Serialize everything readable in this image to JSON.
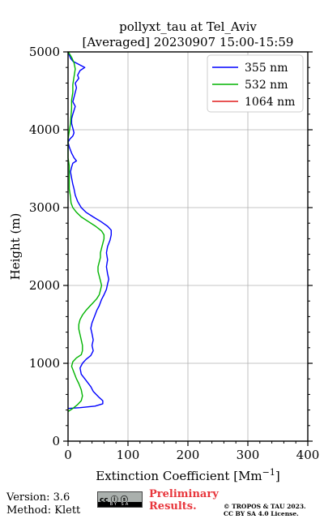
{
  "chart_data": {
    "type": "line",
    "title": "pollyxt_tau at Tel_Aviv",
    "subtitle": "[Averaged] 20230907 15:00-15:59",
    "xlabel": "Extinction Coefficient [Mm",
    "xlabel_sup": "−1",
    "xlabel_close": "]",
    "ylabel": "Height (m)",
    "xlim": [
      0,
      400
    ],
    "ylim": [
      0,
      5000
    ],
    "xticks": [
      "0",
      "100",
      "200",
      "300",
      "400"
    ],
    "yticks": [
      "0",
      "1000",
      "2000",
      "3000",
      "4000",
      "5000"
    ],
    "grid": true,
    "legend_position": "top-right",
    "series": [
      {
        "name": "355 nm",
        "color": "#0000ff",
        "points": [
          [
            0,
            420
          ],
          [
            20,
            430
          ],
          [
            45,
            450
          ],
          [
            58,
            480
          ],
          [
            58,
            520
          ],
          [
            52,
            560
          ],
          [
            42,
            640
          ],
          [
            38,
            700
          ],
          [
            30,
            780
          ],
          [
            22,
            860
          ],
          [
            20,
            940
          ],
          [
            24,
            1000
          ],
          [
            30,
            1050
          ],
          [
            38,
            1100
          ],
          [
            42,
            1160
          ],
          [
            40,
            1230
          ],
          [
            42,
            1300
          ],
          [
            40,
            1380
          ],
          [
            38,
            1450
          ],
          [
            40,
            1520
          ],
          [
            44,
            1600
          ],
          [
            48,
            1680
          ],
          [
            52,
            1740
          ],
          [
            56,
            1820
          ],
          [
            60,
            1880
          ],
          [
            64,
            1950
          ],
          [
            66,
            2020
          ],
          [
            68,
            2080
          ],
          [
            66,
            2150
          ],
          [
            64,
            2240
          ],
          [
            66,
            2330
          ],
          [
            64,
            2420
          ],
          [
            66,
            2500
          ],
          [
            70,
            2580
          ],
          [
            72,
            2650
          ],
          [
            72,
            2710
          ],
          [
            66,
            2760
          ],
          [
            55,
            2820
          ],
          [
            42,
            2880
          ],
          [
            30,
            2940
          ],
          [
            22,
            3000
          ],
          [
            16,
            3080
          ],
          [
            12,
            3160
          ],
          [
            10,
            3240
          ],
          [
            8,
            3300
          ],
          [
            6,
            3380
          ],
          [
            4,
            3460
          ],
          [
            6,
            3520
          ],
          [
            8,
            3570
          ],
          [
            14,
            3600
          ],
          [
            10,
            3640
          ],
          [
            6,
            3700
          ],
          [
            2,
            3780
          ],
          [
            0,
            3840
          ],
          [
            3,
            3880
          ],
          [
            8,
            3920
          ],
          [
            10,
            3960
          ],
          [
            8,
            4020
          ],
          [
            6,
            4080
          ],
          [
            6,
            4140
          ],
          [
            8,
            4200
          ],
          [
            10,
            4250
          ],
          [
            12,
            4300
          ],
          [
            8,
            4360
          ],
          [
            10,
            4420
          ],
          [
            12,
            4480
          ],
          [
            14,
            4540
          ],
          [
            12,
            4600
          ],
          [
            18,
            4660
          ],
          [
            16,
            4700
          ],
          [
            20,
            4760
          ],
          [
            28,
            4800
          ],
          [
            18,
            4840
          ],
          [
            8,
            4880
          ],
          [
            4,
            4920
          ],
          [
            2,
            4960
          ],
          [
            0,
            5000
          ]
        ]
      },
      {
        "name": "532 nm",
        "color": "#00b400",
        "points": [
          [
            0,
            380
          ],
          [
            8,
            420
          ],
          [
            16,
            470
          ],
          [
            22,
            520
          ],
          [
            24,
            580
          ],
          [
            22,
            660
          ],
          [
            18,
            740
          ],
          [
            14,
            800
          ],
          [
            10,
            880
          ],
          [
            6,
            960
          ],
          [
            8,
            1020
          ],
          [
            14,
            1070
          ],
          [
            22,
            1110
          ],
          [
            24,
            1160
          ],
          [
            24,
            1230
          ],
          [
            22,
            1300
          ],
          [
            20,
            1370
          ],
          [
            18,
            1440
          ],
          [
            18,
            1500
          ],
          [
            20,
            1560
          ],
          [
            24,
            1620
          ],
          [
            30,
            1680
          ],
          [
            36,
            1730
          ],
          [
            42,
            1780
          ],
          [
            48,
            1830
          ],
          [
            52,
            1880
          ],
          [
            54,
            1940
          ],
          [
            56,
            2000
          ],
          [
            54,
            2060
          ],
          [
            52,
            2120
          ],
          [
            50,
            2180
          ],
          [
            50,
            2240
          ],
          [
            52,
            2300
          ],
          [
            54,
            2360
          ],
          [
            54,
            2420
          ],
          [
            56,
            2480
          ],
          [
            58,
            2540
          ],
          [
            60,
            2600
          ],
          [
            60,
            2650
          ],
          [
            56,
            2700
          ],
          [
            46,
            2760
          ],
          [
            34,
            2820
          ],
          [
            22,
            2880
          ],
          [
            14,
            2940
          ],
          [
            8,
            3000
          ],
          [
            5,
            3060
          ],
          [
            4,
            3140
          ],
          [
            2,
            3240
          ],
          [
            2,
            3340
          ],
          [
            2,
            3440
          ],
          [
            2,
            3540
          ],
          [
            0,
            3640
          ],
          [
            0,
            3760
          ],
          [
            0,
            3880
          ],
          [
            2,
            3980
          ],
          [
            4,
            4080
          ],
          [
            5,
            4180
          ],
          [
            6,
            4280
          ],
          [
            6,
            4380
          ],
          [
            8,
            4480
          ],
          [
            8,
            4580
          ],
          [
            10,
            4680
          ],
          [
            12,
            4780
          ],
          [
            10,
            4860
          ],
          [
            6,
            4930
          ],
          [
            2,
            4980
          ],
          [
            0,
            5000
          ]
        ]
      },
      {
        "name": "1064 nm",
        "color": "#e01c1c",
        "points": []
      }
    ]
  },
  "footer": {
    "version": "Version: 3.6",
    "method": "Method: Klett",
    "badge_text": "cc ⓘ ⓢ",
    "badge_bar": "BY SA",
    "preliminary_line1": "Preliminary",
    "preliminary_line2": "Results.",
    "copyright_line1": "© TROPOS & TAU 2023.",
    "copyright_line2": "CC BY SA 4.0 License."
  }
}
